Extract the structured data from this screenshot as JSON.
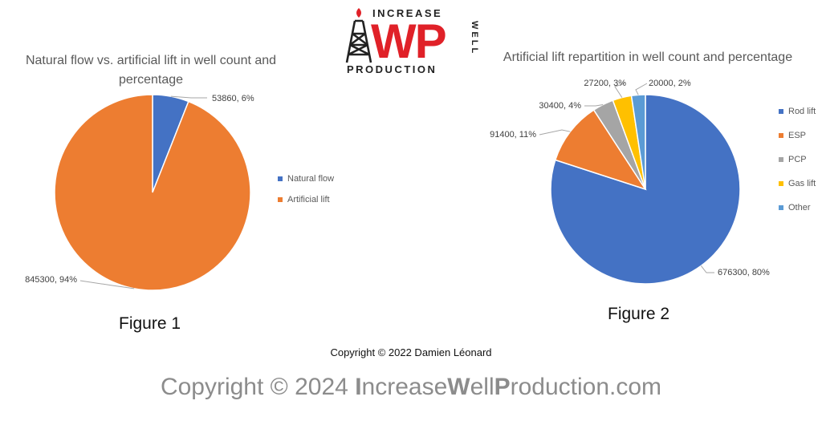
{
  "logo": {
    "top_text": "INCREASE",
    "letters": "WP",
    "side_text": "WELL",
    "bottom_text": "PRODUCTION",
    "colors": {
      "red": "#e02128",
      "dark": "#222222"
    }
  },
  "figure1_label": "Figure 1",
  "figure2_label": "Figure 2",
  "copyright_small": "Copyright © 2022 Damien Léonard",
  "copyright_big": {
    "prefix": "Copyright © 2024 ",
    "b1": "I",
    "t1": "ncrease",
    "b2": "W",
    "t2": "ell",
    "b3": "P",
    "t3": "roduction.com"
  },
  "chart_data": [
    {
      "type": "pie",
      "title": "Natural flow vs. artificial lift in well count and percentage",
      "legend_position": "right",
      "slices": [
        {
          "name": "Natural flow",
          "value": 53860,
          "label": "53860, 6%",
          "color": "#4472c4"
        },
        {
          "name": "Artificial lift",
          "value": 845300,
          "label": "845300, 94%",
          "color": "#ed7d31"
        }
      ]
    },
    {
      "type": "pie",
      "title": "Artificial lift repartition in well count and percentage",
      "legend_position": "right",
      "slices": [
        {
          "name": "Rod lift",
          "value": 676300,
          "label": "676300, 80%",
          "color": "#4472c4"
        },
        {
          "name": "ESP",
          "value": 91400,
          "label": "91400, 11%",
          "color": "#ed7d31"
        },
        {
          "name": "PCP",
          "value": 30400,
          "label": "30400, 4%",
          "color": "#a5a5a5"
        },
        {
          "name": "Gas lift",
          "value": 27200,
          "label": "27200, 3%",
          "color": "#ffc000"
        },
        {
          "name": "Other",
          "value": 20000,
          "label": "20000, 2%",
          "color": "#5b9bd5"
        }
      ]
    }
  ]
}
